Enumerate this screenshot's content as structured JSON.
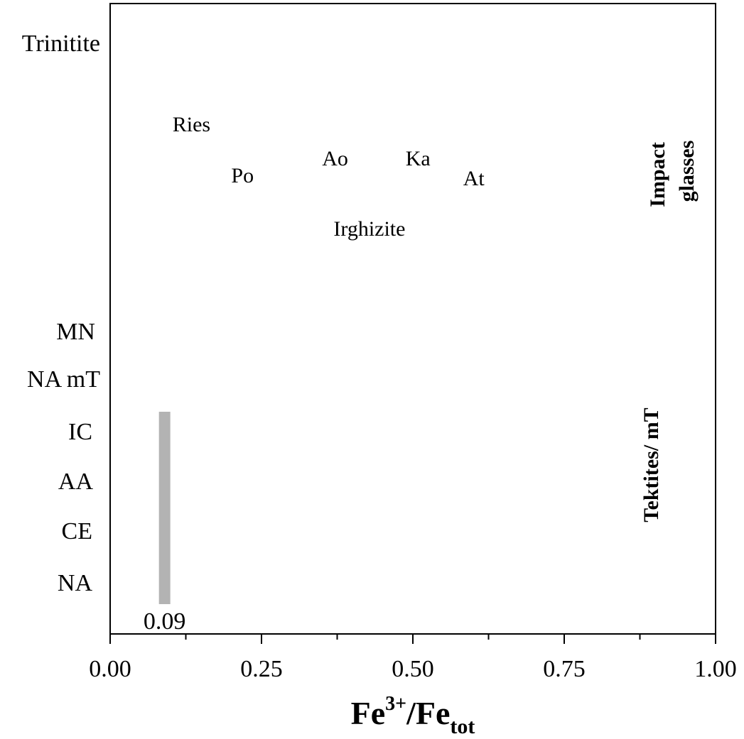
{
  "chart_data": {
    "type": "bar",
    "orientation": "horizontal",
    "xlabel": {
      "base": "Fe",
      "sup": "3+",
      "mid": "/Fe",
      "sub": "tot"
    },
    "xlim": [
      0,
      1
    ],
    "x_ticks": [
      0.0,
      0.25,
      0.5,
      0.75,
      1.0
    ],
    "x_tick_labels": [
      "0.00",
      "0.25",
      "0.50",
      "0.75",
      "1.00"
    ],
    "x_minor_ticks": [
      0.125,
      0.375,
      0.625,
      0.875
    ],
    "grid": false,
    "categories": [
      "Trinitite",
      "MN",
      "NA mT",
      "IC",
      "AA",
      "CE",
      "NA"
    ],
    "bar": {
      "x": 0.09,
      "categories_from": "IC",
      "categories_to": "NA",
      "color": "#b3b3b3",
      "label": "0.09"
    },
    "point_labels": [
      {
        "text": "Ries",
        "x": 0.103
      },
      {
        "text": "Po",
        "x": 0.2
      },
      {
        "text": "Ao",
        "x": 0.35
      },
      {
        "text": "Ka",
        "x": 0.488
      },
      {
        "text": "At",
        "x": 0.583
      },
      {
        "text": "Irghizite",
        "x": 0.369
      }
    ],
    "group_labels": [
      {
        "lines": [
          "Impact",
          "glasses"
        ]
      },
      {
        "lines": [
          "Tektites/ mT"
        ]
      }
    ]
  }
}
